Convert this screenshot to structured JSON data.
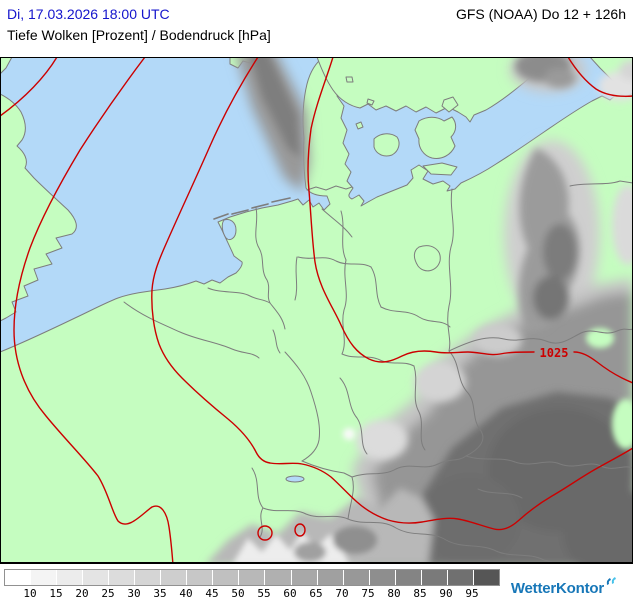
{
  "header": {
    "date_label": "Di, 17.03.2026 18:00 UTC",
    "model_run_label": "GFS (NOAA) Do 12 + 126h",
    "layer_label": "Tiefe Wolken [Prozent] / Bodendruck [hPa]"
  },
  "map": {
    "isobar_label": "1025",
    "colors": {
      "land": "#c5fdc0",
      "water": "#b3d9f8",
      "border": "#7d7d7d",
      "isobar": "#cc0000",
      "frame": "#000000"
    }
  },
  "legend": {
    "ticks": [
      "10",
      "15",
      "20",
      "25",
      "30",
      "35",
      "40",
      "45",
      "50",
      "55",
      "60",
      "65",
      "70",
      "75",
      "80",
      "85",
      "90",
      "95"
    ],
    "cell_colors": [
      "#ffffff",
      "#f4f4f4",
      "#ececec",
      "#e4e4e4",
      "#dcdcdc",
      "#d5d5d5",
      "#cecece",
      "#c7c7c7",
      "#c0c0c0",
      "#b8b8b8",
      "#b0b0b0",
      "#a8a8a8",
      "#a0a0a0",
      "#989898",
      "#8e8e8e",
      "#848484",
      "#7a7a7a",
      "#707070",
      "#565656"
    ]
  },
  "colors": {
    "date_blue": "#1414cc",
    "logo_blue": "#1777b8",
    "logo_mark_teal": "#47c2ea"
  },
  "footer": {
    "logo_text": "WetterKontor"
  }
}
